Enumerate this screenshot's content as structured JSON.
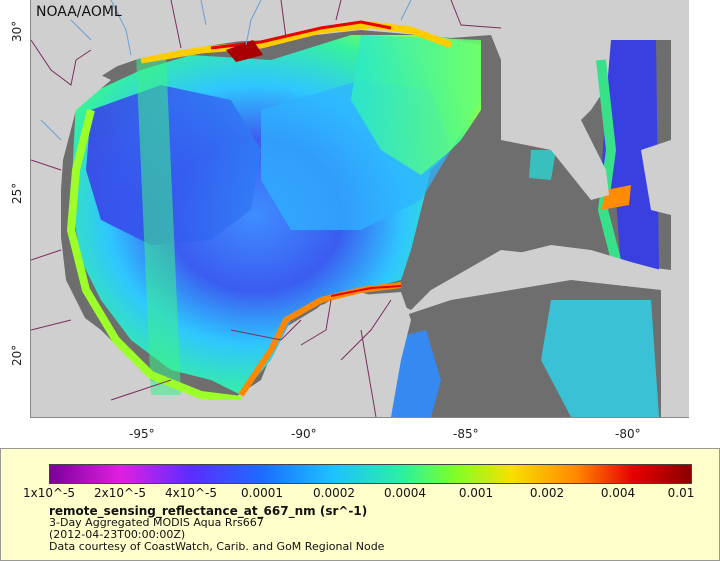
{
  "map": {
    "credit": "NOAA/AOML",
    "x_ticks": [
      "-95°",
      "-90°",
      "-85°",
      "-80°"
    ],
    "y_ticks": [
      "30°",
      "25°",
      "20°"
    ],
    "colors": {
      "land": "#cfcfcf",
      "no_data_ocean": "#6e6e6e",
      "borders": "#7a2f5e",
      "rivers": "#6b9fd6"
    }
  },
  "legend": {
    "colorbar_labels": [
      "1x10^-5",
      "2x10^-5",
      "4x10^-5",
      "0.0001",
      "0.0002",
      "0.0004",
      "0.001",
      "0.002",
      "0.004",
      "0.01"
    ],
    "variable": "remote_sensing_reflectance_at_667_nm (sr^-1)",
    "dataset": "3-Day Aggregated MODIS Aqua Rrs667",
    "time": "(2012-04-23T00:00:00Z)",
    "source": "Data courtesy of CoastWatch, Carib. and GoM Regional Node"
  }
}
